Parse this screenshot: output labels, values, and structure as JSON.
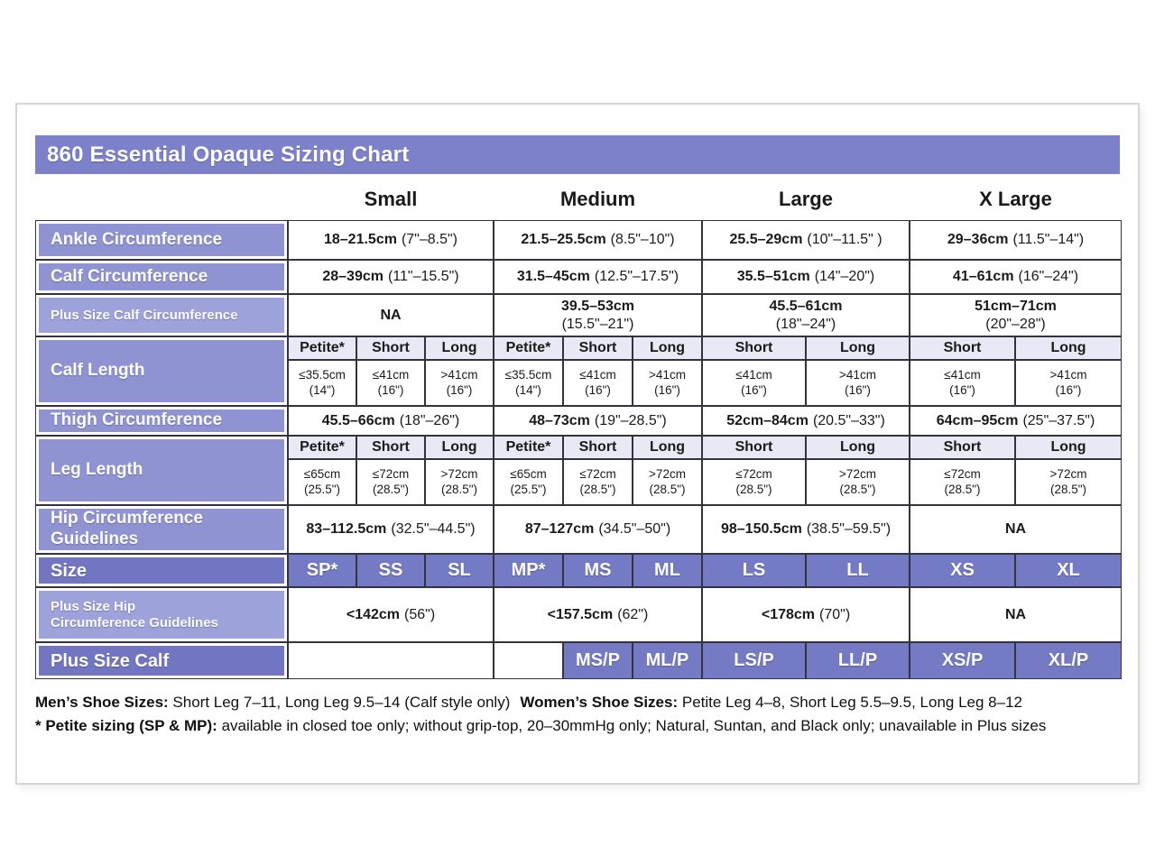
{
  "title": "860 Essential Opaque Sizing Chart",
  "column_headers": [
    "Small",
    "Medium",
    "Large",
    "X Large"
  ],
  "colors": {
    "title_bar": "#7d81c9",
    "row_label_standard": "#8f93d1",
    "row_label_light": "#9ea2da",
    "row_label_dark": "#7276c2",
    "size_cell": "#757ac4",
    "subheader_bg": "#e8e9f4",
    "grid_border": "#33333f",
    "card_border": "#d8d5d5"
  },
  "rows": {
    "ankle": {
      "label": "Ankle Circumference",
      "small": {
        "cm": "18–21.5cm",
        "in": "(7\"–8.5\")"
      },
      "medium": {
        "cm": "21.5–25.5cm",
        "in": "(8.5\"–10\")"
      },
      "large": {
        "cm": "25.5–29cm",
        "in": "(10\"–11.5\" )"
      },
      "xlarge": {
        "cm": "29–36cm",
        "in": "(11.5\"–14\")"
      }
    },
    "calf": {
      "label": "Calf Circumference",
      "small": {
        "cm": "28–39cm",
        "in": "(11\"–15.5\")"
      },
      "medium": {
        "cm": "31.5–45cm",
        "in": "(12.5\"–17.5\")"
      },
      "large": {
        "cm": "35.5–51cm",
        "in": "(14\"–20\")"
      },
      "xlarge": {
        "cm": "41–61cm",
        "in": "(16\"–24\")"
      }
    },
    "plus_calf_circ": {
      "label": "Plus Size Calf Circumference",
      "small": {
        "cm": "NA",
        "in": ""
      },
      "medium": {
        "cm": "39.5–53cm",
        "in": "(15.5\"–21\")"
      },
      "large": {
        "cm": "45.5–61cm",
        "in": "(18\"–24\")"
      },
      "xlarge": {
        "cm": "51cm–71cm",
        "in": "(20\"–28\")"
      }
    },
    "calf_length": {
      "label": "Calf Length",
      "subheads": [
        "Petite*",
        "Short",
        "Long",
        "Petite*",
        "Short",
        "Long",
        "Short",
        "Long",
        "Short",
        "Long"
      ],
      "values": [
        {
          "cm": "≤35.5cm",
          "in": "(14\")"
        },
        {
          "cm": "≤41cm",
          "in": "(16\")"
        },
        {
          "cm": ">41cm",
          "in": "(16\")"
        },
        {
          "cm": "≤35.5cm",
          "in": "(14\")"
        },
        {
          "cm": "≤41cm",
          "in": "(16\")"
        },
        {
          "cm": ">41cm",
          "in": "(16\")"
        },
        {
          "cm": "≤41cm",
          "in": "(16\")"
        },
        {
          "cm": ">41cm",
          "in": "(16\")"
        },
        {
          "cm": "≤41cm",
          "in": "(16\")"
        },
        {
          "cm": ">41cm",
          "in": "(16\")"
        }
      ]
    },
    "thigh": {
      "label": "Thigh Circumference",
      "small": {
        "cm": "45.5–66cm",
        "in": "(18\"–26\")"
      },
      "medium": {
        "cm": "48–73cm",
        "in": "(19\"–28.5\")"
      },
      "large": {
        "cm": "52cm–84cm",
        "in": "(20.5\"–33\")"
      },
      "xlarge": {
        "cm": "64cm–95cm",
        "in": "(25\"–37.5\")"
      }
    },
    "leg_length": {
      "label": "Leg Length",
      "subheads": [
        "Petite*",
        "Short",
        "Long",
        "Petite*",
        "Short",
        "Long",
        "Short",
        "Long",
        "Short",
        "Long"
      ],
      "values": [
        {
          "cm": "≤65cm",
          "in": "(25.5\")"
        },
        {
          "cm": "≤72cm",
          "in": "(28.5\")"
        },
        {
          "cm": ">72cm",
          "in": "(28.5\")"
        },
        {
          "cm": "≤65cm",
          "in": "(25.5\")"
        },
        {
          "cm": "≤72cm",
          "in": "(28.5\")"
        },
        {
          "cm": ">72cm",
          "in": "(28.5\")"
        },
        {
          "cm": "≤72cm",
          "in": "(28.5\")"
        },
        {
          "cm": ">72cm",
          "in": "(28.5\")"
        },
        {
          "cm": "≤72cm",
          "in": "(28.5\")"
        },
        {
          "cm": ">72cm",
          "in": "(28.5\")"
        }
      ]
    },
    "hip": {
      "label": "Hip Circumference\nGuidelines",
      "small": {
        "cm": "83–112.5cm",
        "in": "(32.5\"–44.5\")"
      },
      "medium": {
        "cm": "87–127cm",
        "in": "(34.5\"–50\")"
      },
      "large": {
        "cm": "98–150.5cm",
        "in": "(38.5\"–59.5\")"
      },
      "xlarge": {
        "cm": "NA",
        "in": ""
      }
    },
    "size": {
      "label": "Size",
      "values": [
        "SP*",
        "SS",
        "SL",
        "MP*",
        "MS",
        "ML",
        "LS",
        "LL",
        "XS",
        "XL"
      ]
    },
    "plus_hip": {
      "label": "Plus Size Hip\nCircumference Guidelines",
      "small": {
        "cm": "<142cm",
        "in": "(56\")"
      },
      "medium": {
        "cm": "<157.5cm",
        "in": "(62\")"
      },
      "large": {
        "cm": "<178cm",
        "in": "(70\")"
      },
      "xlarge": {
        "cm": "NA",
        "in": ""
      }
    },
    "plus_calf": {
      "label": "Plus Size Calf",
      "values": [
        "MS/P",
        "ML/P",
        "LS/P",
        "LL/P",
        "XS/P",
        "XL/P"
      ]
    }
  },
  "footer": {
    "line1": {
      "label1": "Men’s Shoe Sizes:",
      "text1": "Short Leg 7–11, Long Leg 9.5–14 (Calf style only)",
      "label2": "Women’s Shoe Sizes:",
      "text2": "Petite Leg 4–8,  Short Leg 5.5–9.5, Long Leg 8–12"
    },
    "line2": {
      "label1": "* Petite sizing (SP & MP):",
      "text1": "available in closed toe only; without grip-top, 20–30mmHg only; Natural, Suntan, and Black only; unavailable in Plus sizes"
    }
  }
}
